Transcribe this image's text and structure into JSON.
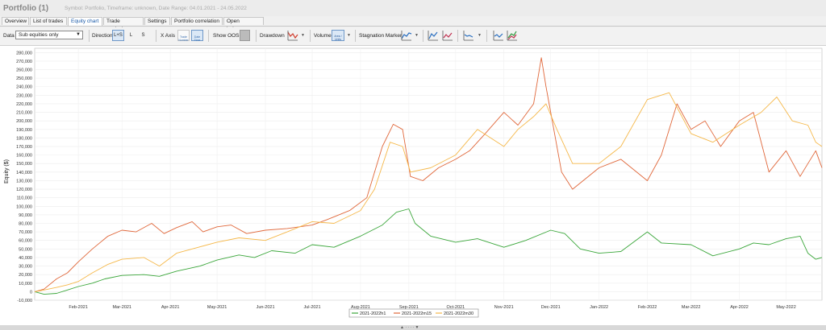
{
  "window": {
    "title": "Portfolio (1)",
    "subtitle": "Symbol: Portfolio, Timeframe: unknown, Date Range: 04.01.2021 - 24.05.2022"
  },
  "tabs": [
    {
      "label": "Overview"
    },
    {
      "label": "List of trades"
    },
    {
      "label": "Equity chart",
      "active": true
    },
    {
      "label": "Trade analysis"
    },
    {
      "label": "Settings"
    },
    {
      "label": "Portfolio correlation"
    },
    {
      "label": "Open balances"
    }
  ],
  "toolbar": {
    "data_label": "Data",
    "data_value": "Sub equities only",
    "direction_label": "Direction",
    "direction_options": [
      "L+S",
      "L",
      "S"
    ],
    "xaxis_label": "X Axis",
    "xaxis_options": [
      "Trade Number",
      "Date Time"
    ],
    "show_oos_label": "Show OOS",
    "drawdown_label": "Drawdown",
    "volume_label": "Volume",
    "volume_value": "Area / Units",
    "stagnation_label": "Stagnation Marker",
    "icons": [
      "chart-line-icon",
      "chart-red-line-icon",
      "chart-blue-line-icon",
      "chart-blue-line-icon",
      "chart-green-lines-icon"
    ]
  },
  "colors": {
    "green": "#3aa63a",
    "red": "#e0673a",
    "orange": "#f5b84a",
    "active_tab": "#1a5aa8"
  },
  "chart_data": {
    "type": "line",
    "ylabel": "Equity ($)",
    "ylim": [
      -10000,
      285000
    ],
    "yticks": [
      -10000,
      0,
      10000,
      20000,
      30000,
      40000,
      50000,
      60000,
      70000,
      80000,
      90000,
      100000,
      110000,
      120000,
      130000,
      140000,
      150000,
      160000,
      170000,
      180000,
      190000,
      200000,
      210000,
      220000,
      230000,
      240000,
      250000,
      260000,
      270000,
      280000
    ],
    "ytick_labels": [
      "-10,000",
      "0",
      "10,000",
      "20,000",
      "30,000",
      "40,000",
      "50,000",
      "60,000",
      "70,000",
      "80,000",
      "90,000",
      "100,000",
      "110,000",
      "120,000",
      "130,000",
      "140,000",
      "150,000",
      "160,000",
      "170,000",
      "180,000",
      "190,000",
      "200,000",
      "210,000",
      "220,000",
      "230,000",
      "240,000",
      "250,000",
      "260,000",
      "270,000",
      "280,000"
    ],
    "xlim": [
      "2021-01-04",
      "2022-05-24"
    ],
    "xticks": [
      {
        "date": "2021-02-01",
        "label": "Feb-2021"
      },
      {
        "date": "2021-03-01",
        "label": "Mar-2021"
      },
      {
        "date": "2021-04-01",
        "label": "Apr-2021"
      },
      {
        "date": "2021-05-01",
        "label": "May-2021"
      },
      {
        "date": "2021-06-01",
        "label": "Jun-2021"
      },
      {
        "date": "2021-07-01",
        "label": "Jul-2021"
      },
      {
        "date": "2021-08-01",
        "label": "Aug-2021"
      },
      {
        "date": "2021-09-01",
        "label": "Sep-2021"
      },
      {
        "date": "2021-10-01",
        "label": "Oct-2021"
      },
      {
        "date": "2021-11-01",
        "label": "Nov-2021"
      },
      {
        "date": "2021-12-01",
        "label": "Dec-2021"
      },
      {
        "date": "2022-01-01",
        "label": "Jan-2022"
      },
      {
        "date": "2022-02-01",
        "label": "Feb-2022"
      },
      {
        "date": "2022-03-01",
        "label": "Mar-2022"
      },
      {
        "date": "2022-04-01",
        "label": "Apr-2022"
      },
      {
        "date": "2022-05-01",
        "label": "May-2022"
      }
    ],
    "grid": true,
    "legend_position": "bottom-center",
    "series": [
      {
        "name": "2021-2022h1",
        "color": "#3aa63a",
        "points": [
          [
            "2021-01-04",
            0
          ],
          [
            "2021-01-10",
            -3000
          ],
          [
            "2021-01-18",
            -2000
          ],
          [
            "2021-01-25",
            2000
          ],
          [
            "2021-02-01",
            6000
          ],
          [
            "2021-02-10",
            10000
          ],
          [
            "2021-02-18",
            15000
          ],
          [
            "2021-03-01",
            19000
          ],
          [
            "2021-03-15",
            20000
          ],
          [
            "2021-03-25",
            18000
          ],
          [
            "2021-04-05",
            24000
          ],
          [
            "2021-04-20",
            30000
          ],
          [
            "2021-05-01",
            37000
          ],
          [
            "2021-05-15",
            43000
          ],
          [
            "2021-05-25",
            40000
          ],
          [
            "2021-06-05",
            48000
          ],
          [
            "2021-06-20",
            45000
          ],
          [
            "2021-07-01",
            55000
          ],
          [
            "2021-07-15",
            52000
          ],
          [
            "2021-08-01",
            65000
          ],
          [
            "2021-08-15",
            78000
          ],
          [
            "2021-08-24",
            93000
          ],
          [
            "2021-09-01",
            97000
          ],
          [
            "2021-09-05",
            80000
          ],
          [
            "2021-09-15",
            65000
          ],
          [
            "2021-10-01",
            58000
          ],
          [
            "2021-10-15",
            62000
          ],
          [
            "2021-11-01",
            52000
          ],
          [
            "2021-11-15",
            60000
          ],
          [
            "2021-12-01",
            72000
          ],
          [
            "2021-12-10",
            68000
          ],
          [
            "2021-12-20",
            50000
          ],
          [
            "2022-01-01",
            45000
          ],
          [
            "2022-01-15",
            47000
          ],
          [
            "2022-02-01",
            70000
          ],
          [
            "2022-02-10",
            57000
          ],
          [
            "2022-03-01",
            55000
          ],
          [
            "2022-03-15",
            42000
          ],
          [
            "2022-04-01",
            50000
          ],
          [
            "2022-04-10",
            57000
          ],
          [
            "2022-04-20",
            55000
          ],
          [
            "2022-05-01",
            62000
          ],
          [
            "2022-05-10",
            65000
          ],
          [
            "2022-05-15",
            45000
          ],
          [
            "2022-05-20",
            38000
          ],
          [
            "2022-05-24",
            40000
          ]
        ]
      },
      {
        "name": "2021-2022m15",
        "color": "#e0673a",
        "points": [
          [
            "2021-01-04",
            0
          ],
          [
            "2021-01-10",
            3000
          ],
          [
            "2021-01-18",
            15000
          ],
          [
            "2021-01-25",
            22000
          ],
          [
            "2021-02-01",
            35000
          ],
          [
            "2021-02-10",
            50000
          ],
          [
            "2021-02-20",
            65000
          ],
          [
            "2021-03-01",
            72000
          ],
          [
            "2021-03-10",
            70000
          ],
          [
            "2021-03-20",
            80000
          ],
          [
            "2021-03-28",
            68000
          ],
          [
            "2021-04-05",
            75000
          ],
          [
            "2021-04-15",
            82000
          ],
          [
            "2021-04-22",
            70000
          ],
          [
            "2021-05-01",
            76000
          ],
          [
            "2021-05-10",
            78000
          ],
          [
            "2021-05-20",
            68000
          ],
          [
            "2021-06-01",
            72000
          ],
          [
            "2021-06-15",
            74000
          ],
          [
            "2021-07-01",
            78000
          ],
          [
            "2021-07-10",
            84000
          ],
          [
            "2021-07-25",
            95000
          ],
          [
            "2021-08-05",
            110000
          ],
          [
            "2021-08-15",
            170000
          ],
          [
            "2021-08-22",
            196000
          ],
          [
            "2021-08-28",
            190000
          ],
          [
            "2021-09-02",
            135000
          ],
          [
            "2021-09-10",
            130000
          ],
          [
            "2021-09-20",
            145000
          ],
          [
            "2021-10-01",
            155000
          ],
          [
            "2021-10-10",
            165000
          ],
          [
            "2021-10-20",
            185000
          ],
          [
            "2021-11-01",
            210000
          ],
          [
            "2021-11-10",
            195000
          ],
          [
            "2021-11-20",
            220000
          ],
          [
            "2021-11-25",
            274000
          ],
          [
            "2021-11-28",
            240000
          ],
          [
            "2021-12-01",
            210000
          ],
          [
            "2021-12-08",
            140000
          ],
          [
            "2021-12-15",
            120000
          ],
          [
            "2022-01-01",
            145000
          ],
          [
            "2022-01-15",
            155000
          ],
          [
            "2022-02-01",
            130000
          ],
          [
            "2022-02-10",
            160000
          ],
          [
            "2022-02-20",
            220000
          ],
          [
            "2022-03-01",
            190000
          ],
          [
            "2022-03-10",
            200000
          ],
          [
            "2022-03-20",
            170000
          ],
          [
            "2022-04-01",
            200000
          ],
          [
            "2022-04-10",
            210000
          ],
          [
            "2022-04-20",
            140000
          ],
          [
            "2022-05-01",
            165000
          ],
          [
            "2022-05-10",
            135000
          ],
          [
            "2022-05-15",
            150000
          ],
          [
            "2022-05-20",
            165000
          ],
          [
            "2022-05-24",
            145000
          ]
        ]
      },
      {
        "name": "2021-2022m30",
        "color": "#f5b84a",
        "points": [
          [
            "2021-01-04",
            0
          ],
          [
            "2021-01-10",
            2000
          ],
          [
            "2021-01-18",
            5000
          ],
          [
            "2021-01-25",
            8000
          ],
          [
            "2021-02-01",
            12000
          ],
          [
            "2021-02-10",
            22000
          ],
          [
            "2021-02-20",
            32000
          ],
          [
            "2021-03-01",
            38000
          ],
          [
            "2021-03-15",
            40000
          ],
          [
            "2021-03-25",
            30000
          ],
          [
            "2021-04-05",
            45000
          ],
          [
            "2021-04-15",
            50000
          ],
          [
            "2021-05-01",
            58000
          ],
          [
            "2021-05-15",
            63000
          ],
          [
            "2021-06-01",
            60000
          ],
          [
            "2021-06-15",
            70000
          ],
          [
            "2021-07-01",
            82000
          ],
          [
            "2021-07-15",
            80000
          ],
          [
            "2021-08-01",
            95000
          ],
          [
            "2021-08-10",
            120000
          ],
          [
            "2021-08-20",
            175000
          ],
          [
            "2021-08-28",
            170000
          ],
          [
            "2021-09-02",
            140000
          ],
          [
            "2021-09-15",
            145000
          ],
          [
            "2021-10-01",
            160000
          ],
          [
            "2021-10-15",
            190000
          ],
          [
            "2021-11-01",
            170000
          ],
          [
            "2021-11-10",
            190000
          ],
          [
            "2021-11-20",
            205000
          ],
          [
            "2021-11-28",
            220000
          ],
          [
            "2021-12-05",
            190000
          ],
          [
            "2021-12-15",
            150000
          ],
          [
            "2022-01-01",
            150000
          ],
          [
            "2022-01-15",
            170000
          ],
          [
            "2022-02-01",
            225000
          ],
          [
            "2022-02-15",
            233000
          ],
          [
            "2022-03-01",
            185000
          ],
          [
            "2022-03-15",
            175000
          ],
          [
            "2022-04-01",
            195000
          ],
          [
            "2022-04-15",
            210000
          ],
          [
            "2022-04-25",
            228000
          ],
          [
            "2022-05-05",
            200000
          ],
          [
            "2022-05-15",
            195000
          ],
          [
            "2022-05-20",
            175000
          ],
          [
            "2022-05-24",
            170000
          ]
        ]
      }
    ]
  }
}
